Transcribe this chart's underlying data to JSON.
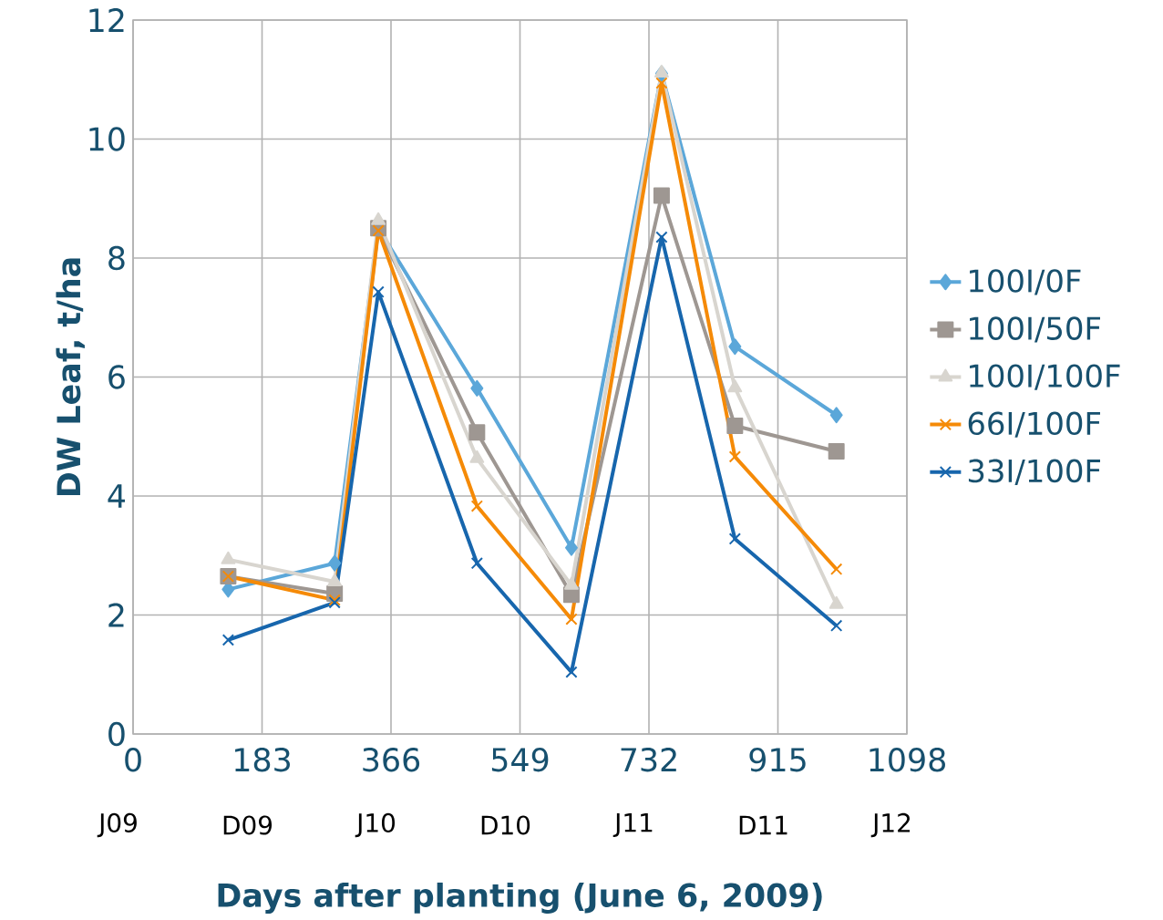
{
  "chart_data": {
    "type": "line",
    "xlabel": "Days after planting (June 6, 2009)",
    "ylabel": "DW Leaf, t/ha",
    "x": [
      135,
      286,
      348,
      488,
      622,
      750,
      854,
      998
    ],
    "series": [
      {
        "name": "100I/0F",
        "color": "#5ba7d9",
        "marker": "diamond",
        "values": [
          2.43,
          2.87,
          8.5,
          5.81,
          3.13,
          11.1,
          6.51,
          5.36
        ]
      },
      {
        "name": "100I/50F",
        "color": "#9e9792",
        "marker": "square",
        "values": [
          2.65,
          2.36,
          8.5,
          5.07,
          2.34,
          9.05,
          5.18,
          4.75
        ]
      },
      {
        "name": "100I/100F",
        "color": "#d8d5cf",
        "marker": "triangle",
        "values": [
          2.93,
          2.56,
          8.63,
          4.63,
          2.5,
          11.11,
          5.82,
          2.18
        ]
      },
      {
        "name": "66I/100F",
        "color": "#f58a07",
        "marker": "cross",
        "values": [
          2.65,
          2.25,
          8.46,
          3.83,
          1.93,
          10.94,
          4.66,
          2.77
        ]
      },
      {
        "name": "33I/100F",
        "color": "#1766ad",
        "marker": "cross",
        "values": [
          1.58,
          2.21,
          7.43,
          2.87,
          1.04,
          8.35,
          3.28,
          1.82
        ]
      }
    ],
    "xlim": [
      0,
      1098
    ],
    "xticks": [
      0,
      183,
      366,
      549,
      732,
      915,
      1098
    ],
    "ylim": [
      0,
      12
    ],
    "yticks": [
      0,
      2,
      4,
      6,
      8,
      10,
      12
    ],
    "grid": true,
    "legend": "right",
    "line_style": "solid",
    "annotations": [
      "J09",
      "D09",
      "J10",
      "D10",
      "J11",
      "D11",
      "J12"
    ]
  }
}
